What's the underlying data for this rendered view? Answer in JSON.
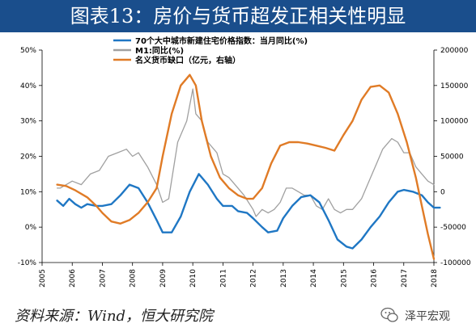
{
  "title": "图表13：房价与货币超发正相关性明显",
  "source": "资料来源：Wind，恒大研究院",
  "watermark": "泽平宏观",
  "colors": {
    "house": "#1f77c4",
    "m1": "#a0a0a0",
    "gap": "#e07b26",
    "title_bg": "#1a4e8c"
  },
  "chart_data": {
    "type": "line",
    "x_ticks": [
      "2005",
      "2006",
      "2007",
      "2008",
      "2009",
      "2010",
      "2011",
      "2012",
      "2013",
      "2014",
      "2015",
      "2016",
      "2017",
      "2018"
    ],
    "y_left": {
      "ticks": [
        "50%",
        "40%",
        "30%",
        "20%",
        "10%",
        "0%",
        "-10%"
      ],
      "range": [
        -10,
        50
      ]
    },
    "y_right": {
      "ticks": [
        "200000",
        "150000",
        "100000",
        "50000",
        "0",
        "-50000",
        "-100000"
      ],
      "range": [
        -100000,
        200000
      ]
    },
    "legend_position": "top-left",
    "series": [
      {
        "name": "70个大中城市新建住宅价格指数：当月同比(%)",
        "axis": "left",
        "color": "#1f77c4",
        "points": [
          [
            2005.5,
            7.5
          ],
          [
            2005.7,
            6
          ],
          [
            2005.9,
            8
          ],
          [
            2006.1,
            6.5
          ],
          [
            2006.3,
            5.5
          ],
          [
            2006.5,
            6.5
          ],
          [
            2006.8,
            6
          ],
          [
            2007.0,
            6
          ],
          [
            2007.3,
            6.5
          ],
          [
            2007.6,
            9
          ],
          [
            2007.9,
            12
          ],
          [
            2008.2,
            11
          ],
          [
            2008.5,
            7
          ],
          [
            2008.8,
            2
          ],
          [
            2009.0,
            -1.5
          ],
          [
            2009.3,
            -1.5
          ],
          [
            2009.6,
            3
          ],
          [
            2009.9,
            10
          ],
          [
            2010.2,
            15
          ],
          [
            2010.5,
            12
          ],
          [
            2010.8,
            8
          ],
          [
            2011.0,
            6
          ],
          [
            2011.3,
            6
          ],
          [
            2011.5,
            4.5
          ],
          [
            2011.8,
            4
          ],
          [
            2012.0,
            2.5
          ],
          [
            2012.3,
            0
          ],
          [
            2012.5,
            -1.5
          ],
          [
            2012.8,
            -1
          ],
          [
            2013.0,
            2.5
          ],
          [
            2013.3,
            6
          ],
          [
            2013.6,
            8.5
          ],
          [
            2013.9,
            9
          ],
          [
            2014.2,
            7
          ],
          [
            2014.5,
            2
          ],
          [
            2014.8,
            -3.5
          ],
          [
            2015.1,
            -5.5
          ],
          [
            2015.3,
            -6
          ],
          [
            2015.6,
            -3.5
          ],
          [
            2015.9,
            0
          ],
          [
            2016.2,
            3
          ],
          [
            2016.5,
            7
          ],
          [
            2016.8,
            10
          ],
          [
            2017.0,
            10.5
          ],
          [
            2017.3,
            10
          ],
          [
            2017.6,
            9
          ],
          [
            2017.8,
            7
          ],
          [
            2018.0,
            5.5
          ],
          [
            2018.2,
            5.5
          ]
        ]
      },
      {
        "name": "M1:同比(%)",
        "axis": "left",
        "color": "#a0a0a0",
        "points": [
          [
            2005.5,
            11
          ],
          [
            2005.6,
            11
          ],
          [
            2005.8,
            12
          ],
          [
            2006.0,
            13
          ],
          [
            2006.3,
            12
          ],
          [
            2006.6,
            15
          ],
          [
            2006.9,
            16
          ],
          [
            2007.2,
            20
          ],
          [
            2007.5,
            21
          ],
          [
            2007.8,
            22
          ],
          [
            2008.0,
            20
          ],
          [
            2008.2,
            21
          ],
          [
            2008.5,
            17
          ],
          [
            2008.8,
            12
          ],
          [
            2009.0,
            7
          ],
          [
            2009.2,
            8
          ],
          [
            2009.5,
            24
          ],
          [
            2009.8,
            30
          ],
          [
            2010.0,
            39
          ],
          [
            2010.1,
            32
          ],
          [
            2010.3,
            30
          ],
          [
            2010.5,
            24
          ],
          [
            2010.8,
            21
          ],
          [
            2011.0,
            15
          ],
          [
            2011.2,
            14
          ],
          [
            2011.4,
            12
          ],
          [
            2011.7,
            9
          ],
          [
            2012.0,
            5
          ],
          [
            2012.1,
            3
          ],
          [
            2012.3,
            5
          ],
          [
            2012.5,
            4
          ],
          [
            2012.7,
            5
          ],
          [
            2012.9,
            7
          ],
          [
            2013.1,
            11
          ],
          [
            2013.3,
            11
          ],
          [
            2013.5,
            10
          ],
          [
            2013.7,
            9
          ],
          [
            2013.9,
            9
          ],
          [
            2014.1,
            6
          ],
          [
            2014.3,
            5
          ],
          [
            2014.5,
            8
          ],
          [
            2014.7,
            5
          ],
          [
            2014.9,
            4
          ],
          [
            2015.1,
            5
          ],
          [
            2015.3,
            5
          ],
          [
            2015.6,
            8
          ],
          [
            2015.9,
            14
          ],
          [
            2016.1,
            18
          ],
          [
            2016.3,
            22
          ],
          [
            2016.6,
            25
          ],
          [
            2016.8,
            24
          ],
          [
            2017.0,
            21
          ],
          [
            2017.2,
            21
          ],
          [
            2017.4,
            17
          ],
          [
            2017.6,
            15
          ],
          [
            2017.8,
            13
          ],
          [
            2018.0,
            12
          ]
        ]
      },
      {
        "name": "名义货币缺口（亿元，右轴）",
        "axis": "right",
        "color": "#e07b26",
        "points": [
          [
            2005.5,
            10000
          ],
          [
            2005.8,
            8000
          ],
          [
            2006.1,
            2000
          ],
          [
            2006.5,
            -8000
          ],
          [
            2006.8,
            -20000
          ],
          [
            2007.0,
            -30000
          ],
          [
            2007.3,
            -42000
          ],
          [
            2007.6,
            -45000
          ],
          [
            2007.9,
            -40000
          ],
          [
            2008.2,
            -30000
          ],
          [
            2008.5,
            -15000
          ],
          [
            2008.8,
            5000
          ],
          [
            2009.0,
            50000
          ],
          [
            2009.3,
            110000
          ],
          [
            2009.6,
            150000
          ],
          [
            2009.9,
            165000
          ],
          [
            2010.1,
            150000
          ],
          [
            2010.3,
            100000
          ],
          [
            2010.6,
            50000
          ],
          [
            2010.9,
            20000
          ],
          [
            2011.2,
            5000
          ],
          [
            2011.5,
            -5000
          ],
          [
            2011.8,
            -10000
          ],
          [
            2012.0,
            -10000
          ],
          [
            2012.3,
            5000
          ],
          [
            2012.6,
            40000
          ],
          [
            2012.9,
            65000
          ],
          [
            2013.2,
            70000
          ],
          [
            2013.5,
            70000
          ],
          [
            2013.8,
            68000
          ],
          [
            2014.1,
            65000
          ],
          [
            2014.4,
            62000
          ],
          [
            2014.7,
            58000
          ],
          [
            2015.0,
            80000
          ],
          [
            2015.3,
            100000
          ],
          [
            2015.6,
            130000
          ],
          [
            2015.9,
            148000
          ],
          [
            2016.2,
            150000
          ],
          [
            2016.5,
            140000
          ],
          [
            2016.8,
            110000
          ],
          [
            2017.1,
            70000
          ],
          [
            2017.4,
            20000
          ],
          [
            2017.6,
            -20000
          ],
          [
            2017.8,
            -60000
          ],
          [
            2018.0,
            -95000
          ]
        ]
      }
    ]
  }
}
